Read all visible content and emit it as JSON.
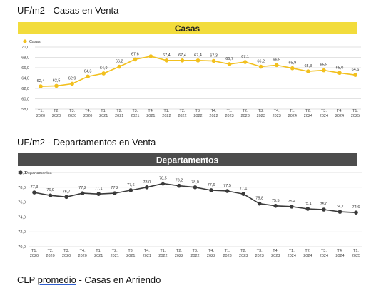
{
  "headings": {
    "casas_venta": "UF/m2 - Casas en Venta",
    "deptos_venta": "UF/m2 - Departamentos en Venta",
    "arriendo_pre": "CLP ",
    "arriendo_link": "promedio",
    "arriendo_post": " - Casas en Arriendo"
  },
  "colors": {
    "casas_band": "#f2dc3c",
    "casas_line": "#f2c01e",
    "deptos_band": "#4d4d4d",
    "deptos_line": "#3a3a3a",
    "grid": "#d9d9d9",
    "link_underline": "#2f5fd0"
  },
  "chart_data": [
    {
      "type": "line",
      "title": "Casas",
      "legend": "Casas",
      "legend_position": "top-left",
      "grid": true,
      "ylim": [
        58.0,
        70.0
      ],
      "yticks": [
        "58,0",
        "60,0",
        "62,0",
        "64,0",
        "66,0",
        "68,0",
        "70,0"
      ],
      "x": [
        [
          "T1.",
          "2020"
        ],
        [
          "T2.",
          "2020"
        ],
        [
          "T3.",
          "2020"
        ],
        [
          "T4.",
          "2020"
        ],
        [
          "T1.",
          "2021"
        ],
        [
          "T2.",
          "2021"
        ],
        [
          "T3.",
          "2021"
        ],
        [
          "T4.",
          "2021"
        ],
        [
          "T1.",
          "2022"
        ],
        [
          "T2.",
          "2022"
        ],
        [
          "T3.",
          "2022"
        ],
        [
          "T4.",
          "2022"
        ],
        [
          "T1.",
          "2023"
        ],
        [
          "T2.",
          "2023"
        ],
        [
          "T3.",
          "2023"
        ],
        [
          "T4.",
          "2023"
        ],
        [
          "T1.",
          "2024"
        ],
        [
          "T2.",
          "2024"
        ],
        [
          "T3.",
          "2024"
        ],
        [
          "T4.",
          "2024"
        ],
        [
          "T1.",
          "2025"
        ]
      ],
      "series": [
        {
          "name": "Casas",
          "values": [
            62.4,
            62.5,
            62.9,
            64.3,
            64.9,
            66.2,
            67.6,
            68.2,
            67.4,
            67.4,
            67.4,
            67.3,
            66.7,
            67.1,
            66.2,
            66.5,
            65.9,
            65.3,
            65.5,
            65.0,
            64.6
          ],
          "labels": [
            "62,4",
            "62,5",
            "62,9",
            "64,3",
            "64,9",
            "66,2",
            "67,6",
            null,
            "67,4",
            "67,4",
            "67,4",
            "67,3",
            "66,7",
            "67,1",
            "66,2",
            "66,5",
            "65,9",
            "65,3",
            "65,5",
            "65,0",
            "64,6"
          ]
        }
      ]
    },
    {
      "type": "line",
      "title": "Departamentos",
      "legend": "Departamentos",
      "legend_position": "top-left",
      "grid": true,
      "ylim": [
        70.0,
        80.0
      ],
      "yticks": [
        "70,0",
        "72,0",
        "74,0",
        "76,0",
        "78,0",
        "80,0"
      ],
      "x": [
        [
          "T1.",
          "2020"
        ],
        [
          "T2.",
          "2020"
        ],
        [
          "T3.",
          "2020"
        ],
        [
          "T4.",
          "2020"
        ],
        [
          "T1.",
          "2021"
        ],
        [
          "T2.",
          "2021"
        ],
        [
          "T3.",
          "2021"
        ],
        [
          "T4.",
          "2021"
        ],
        [
          "T1.",
          "2022"
        ],
        [
          "T2.",
          "2022"
        ],
        [
          "T3.",
          "2022"
        ],
        [
          "T4.",
          "2022"
        ],
        [
          "T1.",
          "2023"
        ],
        [
          "T2.",
          "2023"
        ],
        [
          "T3.",
          "2023"
        ],
        [
          "T4.",
          "2023"
        ],
        [
          "T1.",
          "2024"
        ],
        [
          "T2.",
          "2024"
        ],
        [
          "T3.",
          "2024"
        ],
        [
          "T4.",
          "2024"
        ],
        [
          "T1.",
          "2025"
        ]
      ],
      "series": [
        {
          "name": "Departamentos",
          "values": [
            77.3,
            76.9,
            76.7,
            77.2,
            77.1,
            77.2,
            77.6,
            78.0,
            78.5,
            78.2,
            78.0,
            77.6,
            77.5,
            77.1,
            75.8,
            75.5,
            75.4,
            75.1,
            75.0,
            74.7,
            74.6
          ],
          "labels": [
            "77,3",
            "76,9",
            "76,7",
            "77,2",
            "77,1",
            "77,2",
            "77,6",
            "78,0",
            "78,5",
            "78,2",
            "78,0",
            "77,6",
            "77,5",
            "77,1",
            "75,8",
            "75,5",
            "75,4",
            "75,1",
            "75,0",
            "74,7",
            "74,6"
          ]
        }
      ]
    }
  ]
}
